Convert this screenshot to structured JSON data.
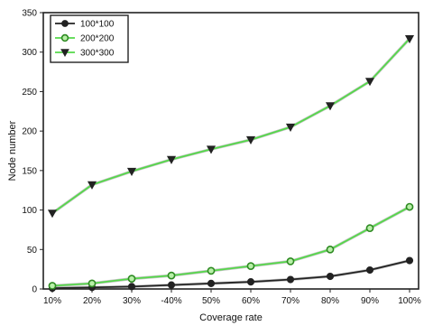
{
  "chart_data": {
    "type": "line",
    "title": "",
    "xlabel": "Coverage rate",
    "ylabel": "Node number",
    "categories": [
      "10%",
      "20%",
      "30%",
      "-40%",
      "50%",
      "60%",
      "70%",
      "80%",
      "90%",
      "100%"
    ],
    "ylim": [
      0,
      350
    ],
    "yticks": [
      0,
      50,
      100,
      150,
      200,
      250,
      300,
      350
    ],
    "grid": false,
    "legend_position": "top-left",
    "series": [
      {
        "name": "100*100",
        "marker": "circle",
        "line_color": "#222222",
        "marker_color": "#222222",
        "values": [
          1,
          2,
          3,
          5,
          7,
          9,
          12,
          16,
          24,
          36
        ]
      },
      {
        "name": "200*200",
        "marker": "circle-open",
        "line_color": "#55d84a",
        "marker_color": "#2e8a22",
        "values": [
          4,
          7,
          13,
          17,
          23,
          29,
          35,
          50,
          77,
          104
        ]
      },
      {
        "name": "300*300",
        "marker": "triangle-down",
        "line_color": "#55d84a",
        "marker_color": "#222222",
        "values": [
          96,
          132,
          149,
          164,
          177,
          189,
          205,
          232,
          263,
          317
        ]
      }
    ]
  }
}
